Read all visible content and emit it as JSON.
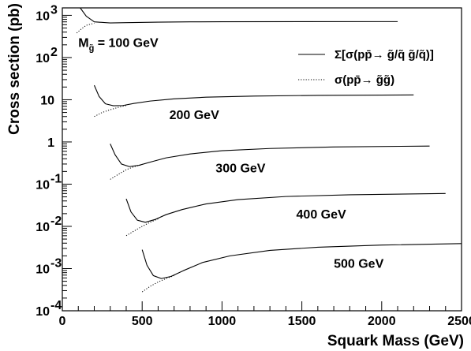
{
  "chart_data": {
    "type": "line",
    "title": "",
    "xlabel": "Squark Mass (GeV)",
    "ylabel": "Cross section (pb)",
    "xlim": [
      0,
      2500
    ],
    "ylim": [
      0.0001,
      1500
    ],
    "yscale": "log",
    "grid": false,
    "legend_position": "top-right",
    "x_ticks": [
      {
        "value": 0,
        "label": "0"
      },
      {
        "value": 500,
        "label": "500"
      },
      {
        "value": 1000,
        "label": "1000"
      },
      {
        "value": 1500,
        "label": "1500"
      },
      {
        "value": 2000,
        "label": "2000"
      },
      {
        "value": 2500,
        "label": "2500"
      }
    ],
    "y_ticks": [
      {
        "value": 0.0001,
        "base": "10",
        "exp": "-4"
      },
      {
        "value": 0.001,
        "base": "10",
        "exp": "-3"
      },
      {
        "value": 0.01,
        "base": "10",
        "exp": "-2"
      },
      {
        "value": 0.1,
        "base": "10",
        "exp": "-1"
      },
      {
        "value": 1,
        "base": "1",
        "exp": ""
      },
      {
        "value": 10,
        "base": "10",
        "exp": ""
      },
      {
        "value": 100,
        "base": "10",
        "exp": "2"
      },
      {
        "value": 1000,
        "base": "10",
        "exp": "3"
      }
    ],
    "legend": [
      {
        "style": "solid",
        "text": "Σ[σ(pp̄→ g̃/q̃ g̃/q̃)]"
      },
      {
        "style": "dotted",
        "text": "σ(pp̄→ g̃g̃)"
      }
    ],
    "annotations": [
      {
        "main": "M",
        "sub": "g̃",
        "rest": " = 100 GeV",
        "at_x": 100,
        "at_y": 180
      },
      {
        "main": "200 GeV",
        "sub": "",
        "rest": "",
        "at_x": 670,
        "at_y": 3.5
      },
      {
        "main": "300 GeV",
        "sub": "",
        "rest": "",
        "at_x": 960,
        "at_y": 0.19
      },
      {
        "main": "400 GeV",
        "sub": "",
        "rest": "",
        "at_x": 1465,
        "at_y": 0.0155
      },
      {
        "main": "500 GeV",
        "sub": "",
        "rest": "",
        "at_x": 1700,
        "at_y": 0.00105
      }
    ],
    "series": [
      {
        "style": "solid",
        "x": [
          112,
          150,
          200,
          300,
          400,
          600,
          800,
          1000,
          1500,
          2000,
          2100
        ],
        "y": [
          1500,
          950,
          700,
          660,
          670,
          690,
          700,
          705,
          708,
          710,
          710
        ]
      },
      {
        "style": "dotted",
        "x": [
          90,
          120,
          150,
          200
        ],
        "y": [
          380,
          480,
          580,
          650
        ]
      },
      {
        "style": "solid",
        "x": [
          200,
          230,
          270,
          320,
          380,
          450,
          550,
          700,
          900,
          1200,
          1600,
          2200
        ],
        "y": [
          22,
          12,
          8,
          7.2,
          7.3,
          8.2,
          9.3,
          10.5,
          11.5,
          12.2,
          12.7,
          13
        ]
      },
      {
        "style": "dotted",
        "x": [
          200,
          250,
          300,
          350,
          400
        ],
        "y": [
          4,
          5,
          5.8,
          6.6,
          7.3
        ]
      },
      {
        "style": "solid",
        "x": [
          300,
          330,
          370,
          420,
          480,
          560,
          650,
          800,
          1000,
          1300,
          1700,
          2300
        ],
        "y": [
          0.9,
          0.5,
          0.3,
          0.26,
          0.28,
          0.34,
          0.42,
          0.52,
          0.62,
          0.7,
          0.76,
          0.8
        ]
      },
      {
        "style": "dotted",
        "x": [
          300,
          350,
          400,
          450,
          500
        ],
        "y": [
          0.13,
          0.17,
          0.22,
          0.26,
          0.29
        ]
      },
      {
        "style": "solid",
        "x": [
          400,
          430,
          470,
          520,
          580,
          650,
          750,
          900,
          1100,
          1400,
          1800,
          2400
        ],
        "y": [
          0.045,
          0.022,
          0.014,
          0.0125,
          0.0145,
          0.019,
          0.025,
          0.034,
          0.043,
          0.051,
          0.056,
          0.06
        ]
      },
      {
        "style": "dotted",
        "x": [
          400,
          450,
          500,
          550,
          600
        ],
        "y": [
          0.006,
          0.0078,
          0.01,
          0.0125,
          0.015
        ]
      },
      {
        "style": "solid",
        "x": [
          500,
          530,
          570,
          620,
          680,
          760,
          880,
          1050,
          1300,
          1600,
          2000,
          2500
        ],
        "y": [
          0.0028,
          0.0012,
          0.00068,
          0.00058,
          0.00065,
          0.0009,
          0.0014,
          0.002,
          0.0027,
          0.0032,
          0.0036,
          0.0039
        ]
      },
      {
        "style": "dotted",
        "x": [
          500,
          550,
          600,
          650,
          700
        ],
        "y": [
          0.00028,
          0.00038,
          0.00048,
          0.00058,
          0.00068
        ]
      }
    ]
  }
}
